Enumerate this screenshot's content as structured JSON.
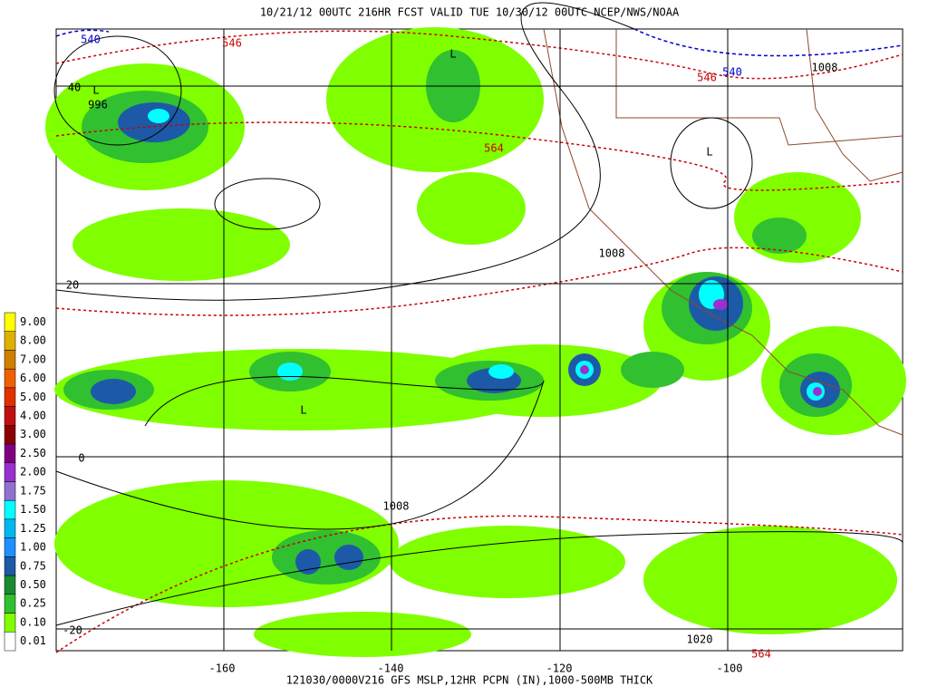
{
  "header": {
    "title": "10/21/12 00UTC 216HR FCST VALID TUE 10/30/12 00UTC NCEP/NWS/NOAA"
  },
  "footer": {
    "caption": "121030/0000V216 GFS MSLP,12HR PCPN (IN),1000-500MB THICK"
  },
  "legend": {
    "items": [
      {
        "label": "9.00",
        "color": "#ffff00"
      },
      {
        "label": "8.00",
        "color": "#e0b000"
      },
      {
        "label": "7.00",
        "color": "#d08000"
      },
      {
        "label": "6.00",
        "color": "#f06000"
      },
      {
        "label": "5.00",
        "color": "#e03000"
      },
      {
        "label": "4.00",
        "color": "#c01010"
      },
      {
        "label": "3.00",
        "color": "#8b0000"
      },
      {
        "label": "2.50",
        "color": "#800080"
      },
      {
        "label": "2.00",
        "color": "#9a30d0"
      },
      {
        "label": "1.75",
        "color": "#9070d0"
      },
      {
        "label": "1.50",
        "color": "#00ffff"
      },
      {
        "label": "1.25",
        "color": "#00b8f0"
      },
      {
        "label": "1.00",
        "color": "#1e90ff"
      },
      {
        "label": "0.75",
        "color": "#1c5aa8"
      },
      {
        "label": "0.50",
        "color": "#1a8a30"
      },
      {
        "label": "0.25",
        "color": "#30c030"
      },
      {
        "label": "0.10",
        "color": "#80ff00"
      },
      {
        "label": "0.01",
        "color": "#ffffff"
      }
    ]
  },
  "map": {
    "latitude_labels": [
      "40",
      "20",
      "0",
      "-20"
    ],
    "longitude_labels": [
      "-160",
      "-140",
      "-120",
      "-100"
    ],
    "contour_labels": [
      {
        "text": "540",
        "color": "#0000cc"
      },
      {
        "text": "540",
        "color": "#0000cc"
      },
      {
        "text": "546",
        "color": "#cc0000"
      },
      {
        "text": "546",
        "color": "#cc0000"
      },
      {
        "text": "996",
        "color": "#000000"
      },
      {
        "text": "564",
        "color": "#cc0000"
      },
      {
        "text": "564",
        "color": "#cc0000"
      },
      {
        "text": "1008",
        "color": "#000000"
      },
      {
        "text": "1008",
        "color": "#000000"
      },
      {
        "text": "1008",
        "color": "#000000"
      },
      {
        "text": "1020",
        "color": "#000000"
      }
    ],
    "lows": [
      "L",
      "L",
      "L",
      "L"
    ]
  }
}
